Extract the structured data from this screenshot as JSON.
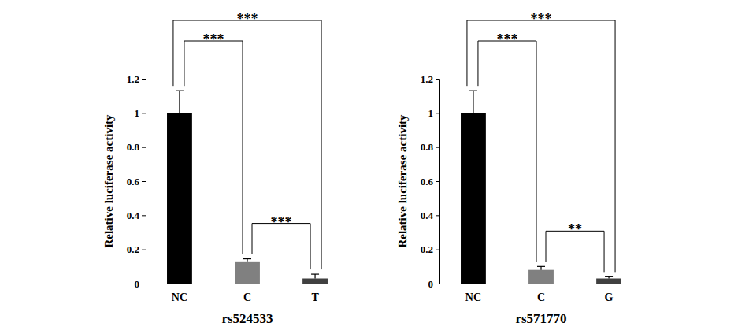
{
  "chart_data": [
    {
      "type": "bar",
      "categories": [
        "NC",
        "C",
        "T"
      ],
      "values": [
        1,
        0.13,
        0.03
      ],
      "errors": [
        0.13,
        0.015,
        0.025
      ],
      "colors": [
        "#000000",
        "#808080",
        "#404040"
      ],
      "x_label": "rs524533",
      "y_label": "Relative luciferase activity",
      "ylim": [
        0,
        1.2
      ],
      "yticks": [
        0,
        0.2,
        0.4,
        0.6,
        0.8,
        1,
        1.2
      ],
      "significance": [
        {
          "groups": [
            "NC",
            "C"
          ],
          "label": "***"
        },
        {
          "groups": [
            "NC",
            "T"
          ],
          "label": "***"
        },
        {
          "groups": [
            "C",
            "T"
          ],
          "label": "***"
        }
      ]
    },
    {
      "type": "bar",
      "categories": [
        "NC",
        "C",
        "G"
      ],
      "values": [
        1,
        0.08,
        0.03
      ],
      "errors": [
        0.13,
        0.02,
        0.01
      ],
      "colors": [
        "#000000",
        "#808080",
        "#404040"
      ],
      "x_label": "rs571770",
      "y_label": "Relative luciferase activity",
      "ylim": [
        0,
        1.2
      ],
      "yticks": [
        0,
        0.2,
        0.4,
        0.6,
        0.8,
        1,
        1.2
      ],
      "significance": [
        {
          "groups": [
            "NC",
            "C"
          ],
          "label": "***"
        },
        {
          "groups": [
            "NC",
            "G"
          ],
          "label": "***"
        },
        {
          "groups": [
            "C",
            "G"
          ],
          "label": "**"
        }
      ]
    }
  ]
}
